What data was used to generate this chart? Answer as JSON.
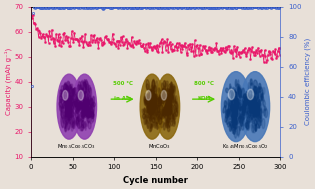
{
  "xlabel": "Cycle number",
  "ylabel_left": "Capacity (mAh g⁻¹)",
  "ylabel_right": "Coulombic efficiency (%)",
  "xlim": [
    0,
    300
  ],
  "ylim_left": [
    10,
    70
  ],
  "ylim_right": [
    0,
    100
  ],
  "yticks_left": [
    10,
    20,
    30,
    40,
    50,
    60,
    70
  ],
  "yticks_right": [
    0,
    20,
    40,
    60,
    80,
    100
  ],
  "xticks": [
    0,
    50,
    100,
    150,
    200,
    250,
    300
  ],
  "capacity_color": "#E8176A",
  "ce_color": "#3A5FCD",
  "background": "#e8e0d8",
  "arrow_color": "#55CC00",
  "purple1": "#9040B0",
  "purple2": "#7A30A0",
  "brown1": "#8B6914",
  "brown2": "#7A5A10",
  "blue1": "#4080C0",
  "blue2": "#3060A0",
  "label1": "Mn$_{0.5}$Co$_{0.5}$CO$_3$",
  "label2": "MnCoO$_3$",
  "label3": "K$_{0.45}$Mn$_{0.5}$Co$_{0.5}$O$_2$"
}
